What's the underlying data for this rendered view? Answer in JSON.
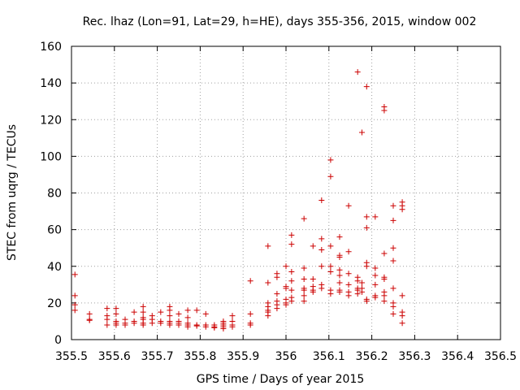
{
  "chart_data": {
    "type": "scatter",
    "title": "Rec. lhaz (Lon=91, Lat=29, h=HE), days 355-356, 2015, window 002",
    "xlabel": "GPS time / Days of year 2015",
    "ylabel": "STEC from uqrg / TECUs",
    "xlim": [
      355.5,
      356.5
    ],
    "ylim": [
      0,
      160
    ],
    "xticks": [
      "355.5",
      "355.6",
      "355.7",
      "355.8",
      "355.9",
      "356",
      "356.1",
      "356.2",
      "356.3",
      "356.4",
      "356.5"
    ],
    "yticks": [
      "0",
      "20",
      "40",
      "60",
      "80",
      "100",
      "120",
      "140",
      "160"
    ],
    "grid": true,
    "legend": "none",
    "marker": "plus",
    "color": "#cc0000",
    "points": [
      [
        355.508,
        35.5
      ],
      [
        355.508,
        24
      ],
      [
        355.508,
        19
      ],
      [
        355.508,
        16
      ],
      [
        355.542,
        14
      ],
      [
        355.542,
        11
      ],
      [
        355.542,
        10.5
      ],
      [
        355.583,
        17
      ],
      [
        355.583,
        13
      ],
      [
        355.583,
        11
      ],
      [
        355.583,
        8
      ],
      [
        355.604,
        17
      ],
      [
        355.604,
        14
      ],
      [
        355.604,
        10
      ],
      [
        355.604,
        9
      ],
      [
        355.604,
        8
      ],
      [
        355.625,
        11
      ],
      [
        355.625,
        9
      ],
      [
        355.625,
        8
      ],
      [
        355.646,
        15
      ],
      [
        355.646,
        10
      ],
      [
        355.646,
        9
      ],
      [
        355.667,
        18
      ],
      [
        355.667,
        15
      ],
      [
        355.667,
        12
      ],
      [
        355.667,
        11
      ],
      [
        355.667,
        9
      ],
      [
        355.667,
        8
      ],
      [
        355.688,
        13
      ],
      [
        355.688,
        11
      ],
      [
        355.688,
        9
      ],
      [
        355.708,
        15
      ],
      [
        355.708,
        10
      ],
      [
        355.708,
        9
      ],
      [
        355.729,
        18
      ],
      [
        355.729,
        16
      ],
      [
        355.729,
        13
      ],
      [
        355.729,
        10
      ],
      [
        355.729,
        9
      ],
      [
        355.729,
        8
      ],
      [
        355.75,
        14
      ],
      [
        355.75,
        10
      ],
      [
        355.75,
        9
      ],
      [
        355.75,
        8
      ],
      [
        355.771,
        16
      ],
      [
        355.771,
        12
      ],
      [
        355.771,
        9
      ],
      [
        355.771,
        8
      ],
      [
        355.771,
        7
      ],
      [
        355.792,
        16
      ],
      [
        355.792,
        8
      ],
      [
        355.792,
        7.5
      ],
      [
        355.813,
        14
      ],
      [
        355.813,
        8
      ],
      [
        355.813,
        7
      ],
      [
        355.833,
        8
      ],
      [
        355.833,
        7
      ],
      [
        355.833,
        6.5
      ],
      [
        355.854,
        10
      ],
      [
        355.854,
        9
      ],
      [
        355.854,
        8
      ],
      [
        355.854,
        7
      ],
      [
        355.854,
        6
      ],
      [
        355.875,
        13
      ],
      [
        355.875,
        10
      ],
      [
        355.875,
        8
      ],
      [
        355.875,
        7
      ],
      [
        355.917,
        32
      ],
      [
        355.917,
        14
      ],
      [
        355.917,
        9
      ],
      [
        355.917,
        8
      ],
      [
        355.958,
        51
      ],
      [
        355.958,
        31
      ],
      [
        355.958,
        20
      ],
      [
        355.958,
        18
      ],
      [
        355.958,
        16
      ],
      [
        355.958,
        15
      ],
      [
        355.958,
        13
      ],
      [
        355.979,
        36
      ],
      [
        355.979,
        34
      ],
      [
        355.979,
        25
      ],
      [
        355.979,
        21
      ],
      [
        355.979,
        19
      ],
      [
        355.979,
        17
      ],
      [
        356.0,
        40
      ],
      [
        356.0,
        29
      ],
      [
        356.0,
        28
      ],
      [
        356.0,
        22
      ],
      [
        356.0,
        20
      ],
      [
        356.0,
        19
      ],
      [
        356.013,
        57
      ],
      [
        356.013,
        52
      ],
      [
        356.013,
        37
      ],
      [
        356.013,
        32
      ],
      [
        356.013,
        27
      ],
      [
        356.013,
        23
      ],
      [
        356.013,
        21
      ],
      [
        356.042,
        66
      ],
      [
        356.042,
        39
      ],
      [
        356.042,
        33
      ],
      [
        356.042,
        28
      ],
      [
        356.042,
        27
      ],
      [
        356.042,
        24
      ],
      [
        356.042,
        21
      ],
      [
        356.063,
        51
      ],
      [
        356.063,
        33
      ],
      [
        356.063,
        29
      ],
      [
        356.063,
        27
      ],
      [
        356.063,
        26
      ],
      [
        356.083,
        76
      ],
      [
        356.083,
        55
      ],
      [
        356.083,
        49
      ],
      [
        356.083,
        40
      ],
      [
        356.083,
        30
      ],
      [
        356.083,
        28
      ],
      [
        356.104,
        98
      ],
      [
        356.104,
        89
      ],
      [
        356.104,
        51
      ],
      [
        356.104,
        40
      ],
      [
        356.104,
        37
      ],
      [
        356.104,
        27
      ],
      [
        356.104,
        25
      ],
      [
        356.125,
        56
      ],
      [
        356.125,
        46
      ],
      [
        356.125,
        45
      ],
      [
        356.125,
        38
      ],
      [
        356.125,
        35
      ],
      [
        356.125,
        31
      ],
      [
        356.125,
        27
      ],
      [
        356.125,
        26
      ],
      [
        356.146,
        73
      ],
      [
        356.146,
        48
      ],
      [
        356.146,
        36
      ],
      [
        356.146,
        30
      ],
      [
        356.146,
        26
      ],
      [
        356.146,
        24
      ],
      [
        356.167,
        146
      ],
      [
        356.167,
        34
      ],
      [
        356.167,
        32
      ],
      [
        356.167,
        28
      ],
      [
        356.167,
        27
      ],
      [
        356.167,
        25
      ],
      [
        356.177,
        113
      ],
      [
        356.177,
        31
      ],
      [
        356.177,
        28
      ],
      [
        356.177,
        26
      ],
      [
        356.188,
        138
      ],
      [
        356.188,
        67
      ],
      [
        356.188,
        61
      ],
      [
        356.188,
        42
      ],
      [
        356.188,
        40
      ],
      [
        356.188,
        22
      ],
      [
        356.188,
        21
      ],
      [
        356.208,
        67
      ],
      [
        356.208,
        39
      ],
      [
        356.208,
        35
      ],
      [
        356.208,
        30
      ],
      [
        356.208,
        24
      ],
      [
        356.208,
        23
      ],
      [
        356.229,
        127
      ],
      [
        356.229,
        125
      ],
      [
        356.229,
        47
      ],
      [
        356.229,
        34
      ],
      [
        356.229,
        33
      ],
      [
        356.229,
        26
      ],
      [
        356.229,
        24
      ],
      [
        356.229,
        21
      ],
      [
        356.25,
        73
      ],
      [
        356.25,
        65
      ],
      [
        356.25,
        50
      ],
      [
        356.25,
        43
      ],
      [
        356.25,
        28
      ],
      [
        356.25,
        20
      ],
      [
        356.25,
        18
      ],
      [
        356.25,
        14
      ],
      [
        356.271,
        75
      ],
      [
        356.271,
        73
      ],
      [
        356.271,
        71
      ],
      [
        356.271,
        24
      ],
      [
        356.271,
        15
      ],
      [
        356.271,
        13
      ],
      [
        356.271,
        9
      ]
    ]
  }
}
